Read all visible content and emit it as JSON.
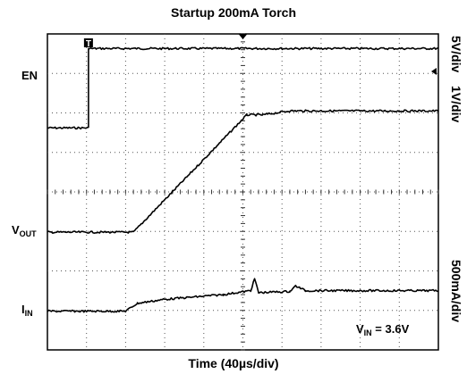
{
  "chart_data": {
    "type": "line",
    "title": "Startup 200mA Torch",
    "xlabel": "Time (40µs/div)",
    "grid": true,
    "x_divisions": 10,
    "y_divisions": 8,
    "channel_labels": {
      "en": {
        "main": "EN",
        "sub": ""
      },
      "vout": {
        "main": "V",
        "sub": "OUT"
      },
      "iin": {
        "main": "I",
        "sub": "IN"
      }
    },
    "scale_labels": {
      "en": "5V/div",
      "vout": "1V/div",
      "iin": "500mA/div"
    },
    "annotation": {
      "main": "V",
      "sub": "IN",
      "text": "= 3.6V"
    },
    "trigger_marker": "T",
    "series": [
      {
        "name": "EN",
        "x": [
          0,
          1.05,
          1.05,
          10
        ],
        "y": [
          5.62,
          5.62,
          7.63,
          7.63
        ]
      },
      {
        "name": "VOUT",
        "x": [
          0,
          2.2,
          5.1,
          5.5,
          6.2,
          10
        ],
        "y": [
          2.98,
          2.98,
          5.95,
          5.95,
          6.05,
          6.05
        ]
      },
      {
        "name": "IIN",
        "x": [
          0,
          2.0,
          2.3,
          3.0,
          4.5,
          5.2,
          5.3,
          5.4,
          6.2,
          6.35,
          6.6,
          10
        ],
        "y": [
          0.98,
          0.98,
          1.18,
          1.28,
          1.4,
          1.5,
          1.8,
          1.45,
          1.48,
          1.62,
          1.5,
          1.5
        ]
      }
    ]
  }
}
